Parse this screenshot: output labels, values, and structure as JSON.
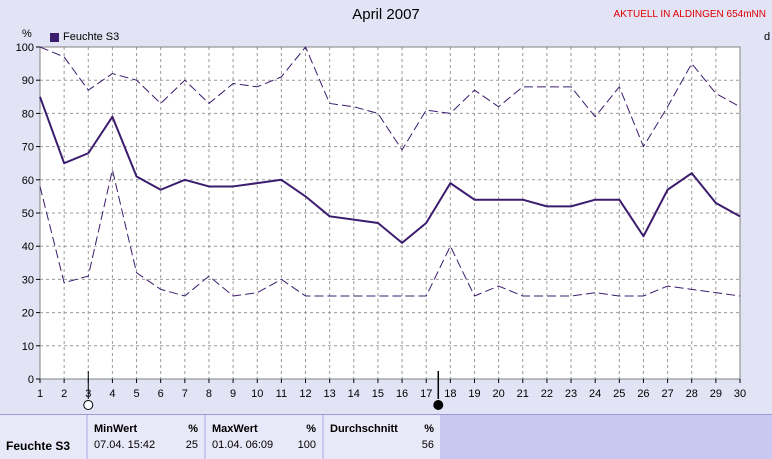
{
  "page": {
    "title": "April 2007",
    "banner": "AKTUELL IN ALDINGEN 654mNN",
    "y_unit": "%",
    "right_cut_label": "d"
  },
  "chart_data": {
    "type": "line",
    "x": [
      1,
      2,
      3,
      4,
      5,
      6,
      7,
      8,
      9,
      10,
      11,
      12,
      13,
      14,
      15,
      16,
      17,
      18,
      19,
      20,
      21,
      22,
      23,
      24,
      25,
      26,
      27,
      28,
      29,
      30
    ],
    "xlim": [
      1,
      30
    ],
    "ylim": [
      0,
      100
    ],
    "yticks": [
      0,
      10,
      20,
      30,
      40,
      50,
      60,
      70,
      80,
      90,
      100
    ],
    "grid": true,
    "legend_position": "top-left",
    "legend": [
      "Feuchte S3"
    ],
    "series": [
      {
        "name": "Feuchte S3",
        "style": "solid",
        "color": "#3b1c6e",
        "values": [
          85,
          65,
          68,
          79,
          61,
          57,
          60,
          58,
          58,
          59,
          60,
          55,
          49,
          48,
          47,
          41,
          47,
          59,
          54,
          54,
          54,
          52,
          52,
          54,
          54,
          43,
          57,
          62,
          53,
          49
        ]
      },
      {
        "style": "dashed-max",
        "color": "#3b1c6e",
        "values": [
          100,
          97,
          87,
          92,
          90,
          83,
          90,
          83,
          89,
          88,
          91,
          100,
          83,
          82,
          80,
          69,
          81,
          80,
          87,
          82,
          88,
          88,
          88,
          79,
          88,
          70,
          82,
          95,
          86,
          82
        ]
      },
      {
        "style": "dashed-min",
        "color": "#3b1c6e",
        "values": [
          58,
          29,
          31,
          63,
          32,
          27,
          25,
          31,
          25,
          26,
          30,
          25,
          25,
          25,
          25,
          25,
          25,
          40,
          25,
          28,
          25,
          25,
          25,
          26,
          25,
          25,
          28,
          27,
          26,
          25
        ]
      }
    ],
    "markers": [
      {
        "x": 3,
        "icon": "moon-first-quarter-icon"
      },
      {
        "x": 17.5,
        "icon": "new-moon-icon"
      }
    ]
  },
  "stats": {
    "row_label": "Feuchte S3",
    "min": {
      "header": "MinWert",
      "unit": "%",
      "time": "07.04.  15:42",
      "value": "25"
    },
    "max": {
      "header": "MaxWert",
      "unit": "%",
      "time": "01.04.  06:09",
      "value": "100"
    },
    "avg": {
      "header": "Durchschnitt",
      "unit": "%",
      "value": "56"
    }
  },
  "colors": {
    "line": "#3b1c6e",
    "plot_bg": "#ffffff",
    "page_bg": "#e3e3f6",
    "banner": "#e00000"
  }
}
